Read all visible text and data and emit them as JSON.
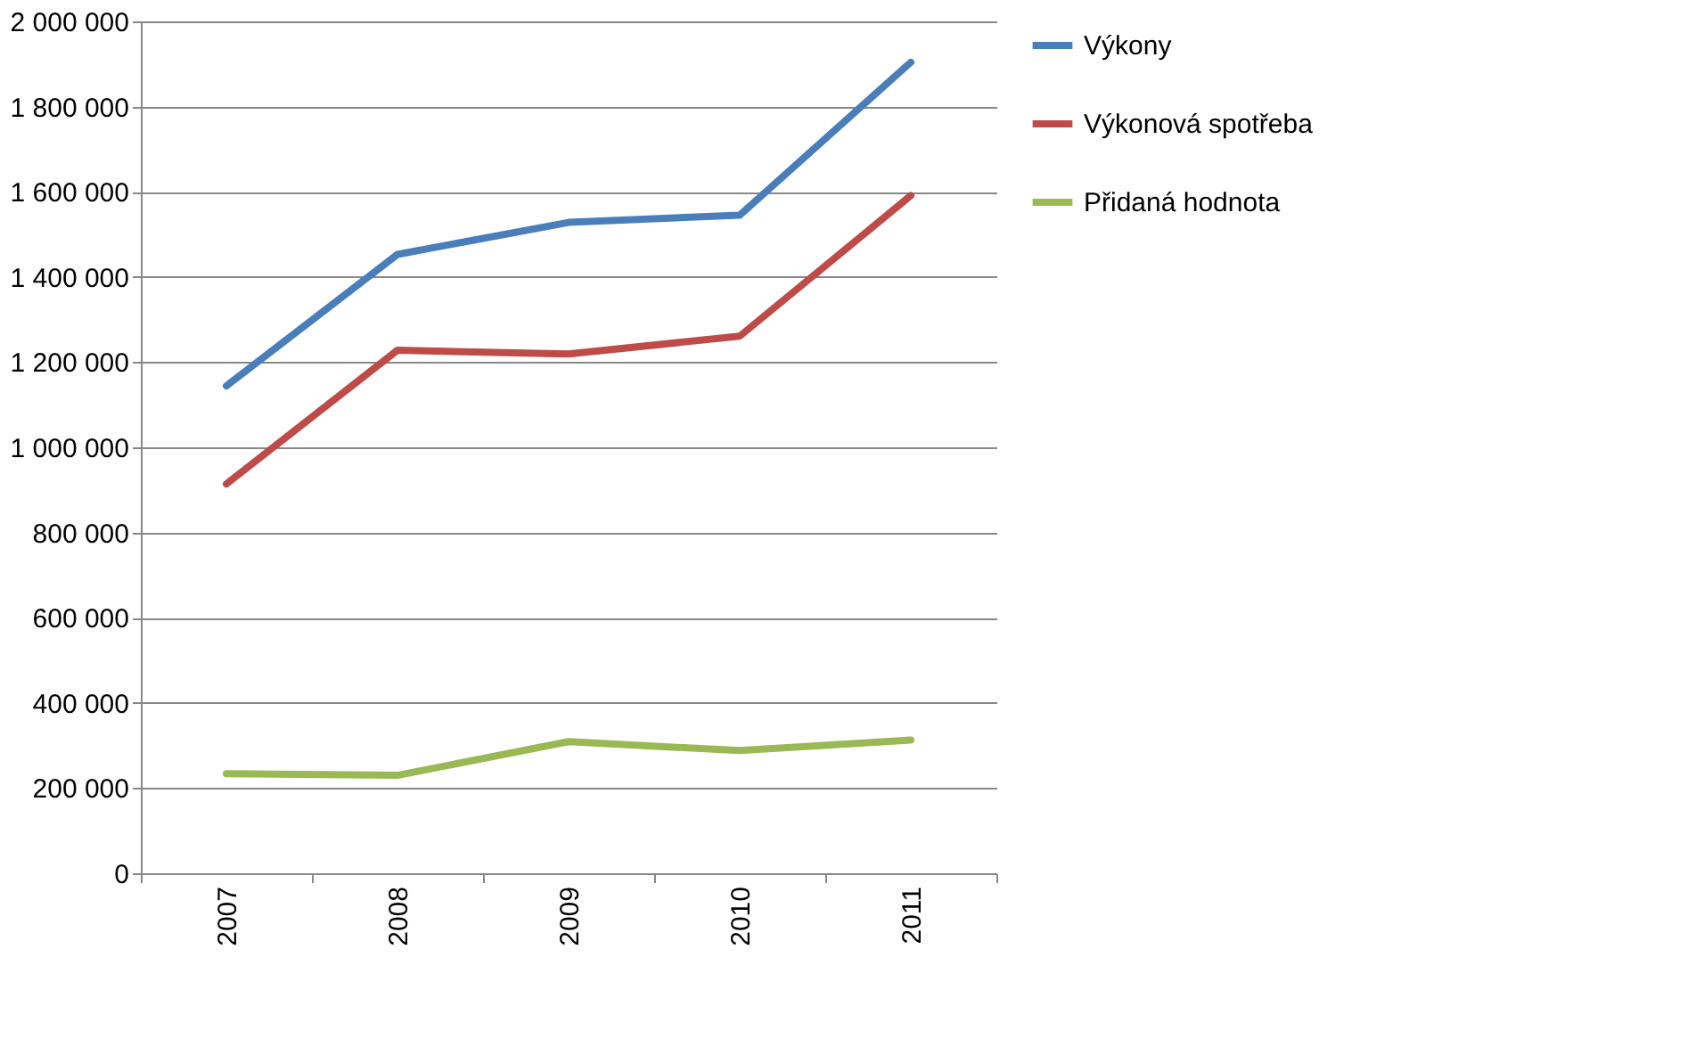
{
  "chart_data": {
    "type": "line",
    "categories": [
      "2007",
      "2008",
      "2009",
      "2010",
      "2011"
    ],
    "series": [
      {
        "name": "Výkony",
        "color": "#4a7ebb",
        "values": [
          1144000,
          1453000,
          1528000,
          1545000,
          1904000
        ]
      },
      {
        "name": "Výkonová spotřeba",
        "color": "#be4b48",
        "values": [
          914000,
          1228000,
          1219000,
          1261000,
          1591000
        ]
      },
      {
        "name": "Přidaná hodnota",
        "color": "#98b954",
        "values": [
          234000,
          230000,
          309000,
          288000,
          313000
        ]
      }
    ],
    "ylim": [
      0,
      2000000
    ],
    "yticks": [
      {
        "value": 0,
        "label": "0"
      },
      {
        "value": 200000,
        "label": "200 000"
      },
      {
        "value": 400000,
        "label": "400 000"
      },
      {
        "value": 600000,
        "label": "600 000"
      },
      {
        "value": 800000,
        "label": "800 000"
      },
      {
        "value": 1000000,
        "label": "1 000 000"
      },
      {
        "value": 1200000,
        "label": "1 200 000"
      },
      {
        "value": 1400000,
        "label": "1 400 000"
      },
      {
        "value": 1600000,
        "label": "1 600 000"
      },
      {
        "value": 1800000,
        "label": "1 800 000"
      },
      {
        "value": 2000000,
        "label": "2 000 000"
      }
    ],
    "grid": "y",
    "legend": "right",
    "marker": "none",
    "line_style": "solid"
  }
}
